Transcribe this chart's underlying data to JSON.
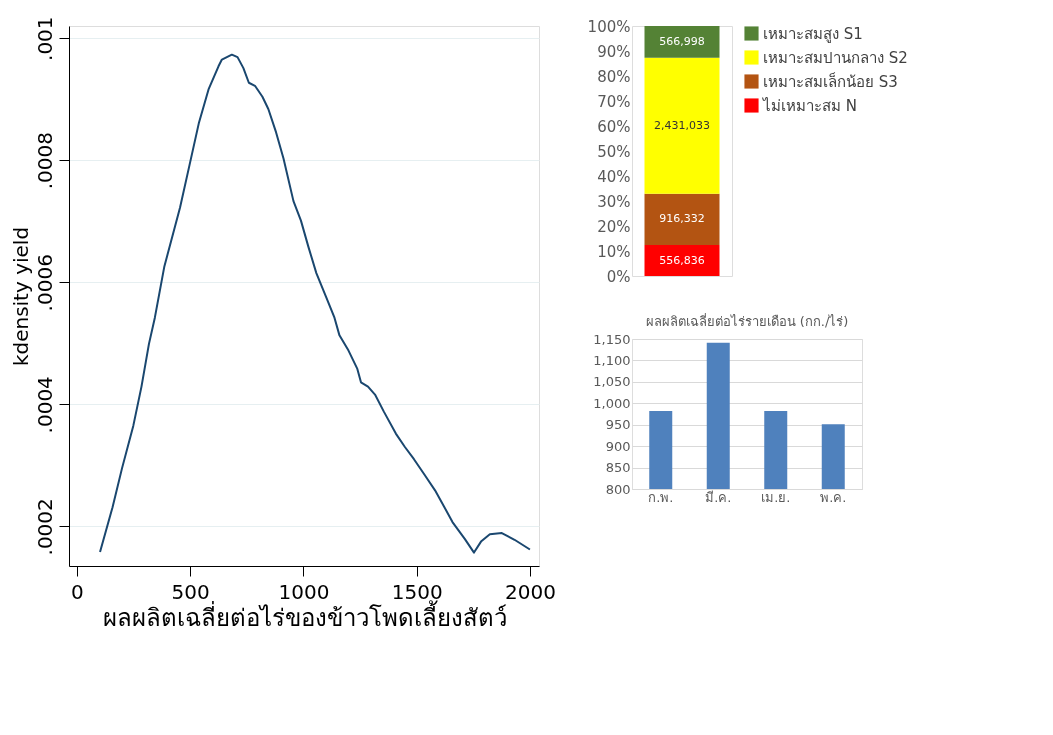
{
  "chart_data": [
    {
      "type": "line",
      "xlabel": "ผลผลิตเฉลี่ยต่อไร่ของข้าวโพดเลี้ยงสัตว์",
      "ylabel": "kdensity yield",
      "x": [
        102,
        157,
        199,
        249,
        285,
        318,
        344,
        386,
        455,
        497,
        539,
        581,
        625,
        640,
        684,
        709,
        735,
        759,
        786,
        819,
        845,
        879,
        912,
        956,
        989,
        1022,
        1057,
        1099,
        1137,
        1159,
        1199,
        1238,
        1254,
        1285,
        1316,
        1355,
        1408,
        1448,
        1488,
        1534,
        1581,
        1620,
        1658,
        1713,
        1753,
        1784,
        1823,
        1876,
        1932,
        2000
      ],
      "series": [
        {
          "color": "#1a476f",
          "values": [
            0.000158,
            0.000231,
            0.000295,
            0.000365,
            0.000429,
            0.000499,
            0.000542,
            0.000626,
            0.000722,
            0.000792,
            0.000862,
            0.000916,
            0.000954,
            0.000965,
            0.000973,
            0.000969,
            0.000951,
            0.000927,
            0.000922,
            0.000904,
            0.000884,
            0.000846,
            0.000803,
            0.000733,
            0.000701,
            0.000658,
            0.000615,
            0.000577,
            0.000542,
            0.000513,
            0.000488,
            0.000458,
            0.000436,
            0.000429,
            0.000416,
            0.000388,
            0.000352,
            0.00033,
            0.00031,
            0.000285,
            0.000259,
            0.000233,
            0.000207,
            0.000179,
            0.000157,
            0.000175,
            0.000187,
            0.000189,
            0.000178,
            0.000162
          ]
        }
      ],
      "xlim": [
        -35,
        2040
      ],
      "ylim": [
        0.000135,
        0.00102
      ],
      "xticks": [
        0,
        500,
        1000,
        1500,
        2000
      ],
      "yticks": [
        {
          "value": 0.0002,
          "label": ".0002"
        },
        {
          "value": 0.0004,
          "label": ".0004"
        },
        {
          "value": 0.0006,
          "label": ".0006"
        },
        {
          "value": 0.0008,
          "label": ".0008"
        },
        {
          "value": 0.001,
          "label": ".001"
        }
      ],
      "grid": "y",
      "line_style": "solid"
    },
    {
      "type": "bar",
      "stacked": true,
      "categories": [
        null
      ],
      "series": [
        {
          "name": "ไม่เหมาะสม N",
          "color": "#ff0000",
          "values": [
            12.4
          ]
        },
        {
          "name": "เหมาะสมเล็กน้อย S3",
          "color": "#b35412",
          "values": [
            20.5
          ]
        },
        {
          "name": "เหมาะสมปานกลาง S2",
          "color": "#ffff00",
          "values": [
            54.4
          ]
        },
        {
          "name": "เหมาะสมสูง S1",
          "color": "#548235",
          "values": [
            12.7
          ]
        }
      ],
      "annotations": [
        "556,836",
        "916,332",
        "2,431,033",
        "566,998"
      ],
      "ylim": [
        0,
        100
      ],
      "yticks": [
        {
          "value": 0,
          "label": "0%"
        },
        {
          "value": 10,
          "label": "10%"
        },
        {
          "value": 20,
          "label": "20%"
        },
        {
          "value": 30,
          "label": "30%"
        },
        {
          "value": 40,
          "label": "40%"
        },
        {
          "value": 50,
          "label": "50%"
        },
        {
          "value": 60,
          "label": "60%"
        },
        {
          "value": 70,
          "label": "70%"
        },
        {
          "value": 80,
          "label": "80%"
        },
        {
          "value": 90,
          "label": "90%"
        },
        {
          "value": 100,
          "label": "100%"
        }
      ],
      "legend": "right"
    },
    {
      "type": "bar",
      "title": "ผลผลิตเฉลี่ยต่อไร่รายเดือน (กก./ไร่)",
      "categories": [
        "ก.พ.",
        "มี.ค.",
        "เม.ย.",
        "พ.ค."
      ],
      "values": [
        982,
        1141,
        982,
        951
      ],
      "color": "#4f81bd",
      "ylim": [
        800,
        1150
      ],
      "yticks": [
        800,
        850,
        900,
        950,
        {
          "value": 1000,
          "label": "1,000"
        },
        {
          "value": 1050,
          "label": "1,050"
        },
        {
          "value": 1100,
          "label": "1,100"
        },
        {
          "value": 1150,
          "label": "1,150"
        }
      ],
      "grid": "y"
    }
  ]
}
